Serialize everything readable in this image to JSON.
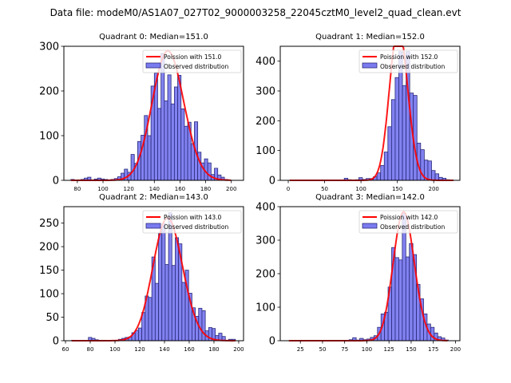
{
  "figure_title": "Data file: modeM0/AS1A07_027T02_9000003258_22045cztM0_level2_quad_clean.evt",
  "colors": {
    "bar_fill": "#7b7bf0",
    "bar_edge": "#2a2a7a",
    "fit_line": "#ff0000"
  },
  "chart_data": [
    {
      "type": "bar",
      "title": "Quadrant 0: Median=151.0",
      "median": 151.0,
      "xlim": [
        69.5,
        209.5
      ],
      "ylim": [
        0,
        300
      ],
      "xticks": [
        80,
        100,
        120,
        140,
        160,
        180,
        200
      ],
      "yticks": [
        0,
        100,
        200,
        300
      ],
      "legend": [
        "Poission with 151.0",
        "Observed distribution"
      ],
      "legend_loc": "upper right",
      "bin_width": 2.6,
      "bin_start": 75.0,
      "values": [
        2,
        0,
        1,
        2,
        5,
        7,
        1,
        3,
        5,
        3,
        2,
        1,
        2,
        4,
        8,
        16,
        25,
        18,
        58,
        38,
        87,
        101,
        145,
        100,
        211,
        240,
        161,
        284,
        178,
        236,
        171,
        209,
        235,
        160,
        121,
        130,
        82,
        131,
        63,
        39,
        48,
        39,
        13,
        27,
        12,
        7,
        2,
        0
      ]
    },
    {
      "type": "bar",
      "title": "Quadrant 1: Median=152.0",
      "median": 152.0,
      "xlim": [
        -11,
        236
      ],
      "ylim": [
        0,
        450
      ],
      "xticks": [
        0,
        50,
        100,
        150,
        200
      ],
      "yticks": [
        0,
        100,
        200,
        300,
        400
      ],
      "legend": [
        "Poission with 152.0",
        "Observed distribution"
      ],
      "legend_loc": "upper right",
      "bin_width": 5.0,
      "bin_start": 2.0,
      "values": [
        0,
        0,
        0,
        0,
        0,
        0,
        0,
        0,
        0,
        0,
        0,
        0,
        0,
        0,
        0,
        7,
        2,
        0,
        2,
        9,
        3,
        6,
        6,
        12,
        25,
        50,
        95,
        180,
        271,
        345,
        432,
        318,
        432,
        293,
        285,
        125,
        103,
        68,
        65,
        33,
        22,
        10,
        7,
        2,
        1
      ]
    },
    {
      "type": "bar",
      "title": "Quadrant 2: Median=143.0",
      "median": 143.0,
      "xlim": [
        58.7,
        203.9
      ],
      "ylim": [
        0,
        285
      ],
      "xticks": [
        60,
        80,
        100,
        120,
        140,
        160,
        180,
        200
      ],
      "yticks": [
        0,
        50,
        100,
        150,
        200,
        250
      ],
      "legend": [
        "Poission with 143.0",
        "Observed distribution"
      ],
      "legend_loc": "upper right",
      "bin_width": 2.7,
      "bin_start": 65.0,
      "values": [
        1,
        0,
        0,
        0,
        0,
        7,
        5,
        2,
        1,
        1,
        0,
        0,
        0,
        1,
        3,
        5,
        7,
        8,
        17,
        22,
        27,
        60,
        95,
        92,
        178,
        122,
        228,
        249,
        162,
        272,
        160,
        219,
        206,
        124,
        150,
        101,
        70,
        52,
        69,
        64,
        21,
        28,
        26,
        11,
        16,
        9,
        1,
        3,
        3
      ]
    },
    {
      "type": "bar",
      "title": "Quadrant 3: Median=142.0",
      "median": 142.0,
      "xlim": [
        2.3,
        205.0
      ],
      "ylim": [
        0,
        400
      ],
      "xticks": [
        25,
        50,
        75,
        100,
        125,
        150,
        175,
        200
      ],
      "yticks": [
        0,
        100,
        200,
        300,
        400
      ],
      "legend": [
        "Poission with 142.0",
        "Observed distribution"
      ],
      "legend_loc": "upper right",
      "bin_width": 4.0,
      "bin_start": 12.0,
      "values": [
        0,
        0,
        0,
        0,
        0,
        0,
        0,
        0,
        0,
        0,
        0,
        0,
        0,
        0,
        0,
        0,
        1,
        3,
        9,
        2,
        7,
        3,
        5,
        10,
        15,
        40,
        80,
        85,
        160,
        278,
        248,
        241,
        380,
        250,
        290,
        257,
        168,
        125,
        80,
        50,
        40,
        23,
        12,
        8,
        2
      ]
    }
  ]
}
